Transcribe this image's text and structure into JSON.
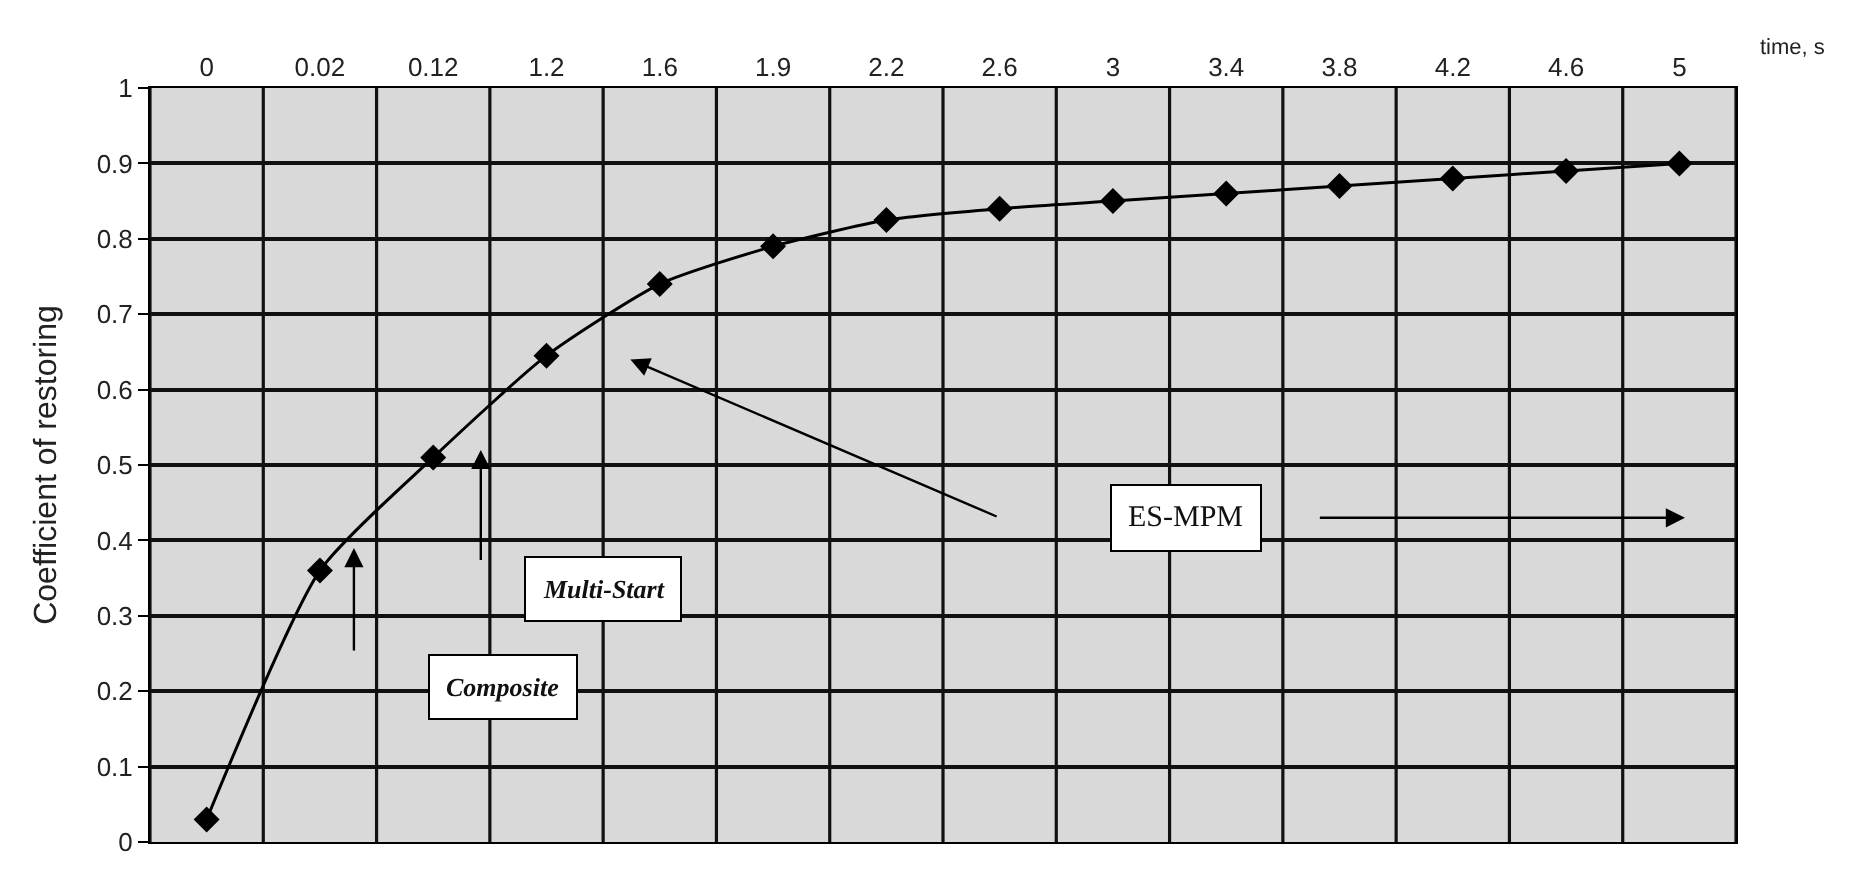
{
  "chart_data": {
    "type": "line",
    "xlabel": "time, s",
    "ylabel": "Coefficient of restoring",
    "categories": [
      "0",
      "0.02",
      "0.12",
      "1.2",
      "1.6",
      "1.9",
      "2.2",
      "2.6",
      "3",
      "3.4",
      "3.8",
      "4.2",
      "4.6",
      "5"
    ],
    "series": [
      {
        "color": "#000000",
        "values": [
          0.03,
          0.36,
          0.51,
          0.645,
          0.74,
          0.79,
          0.825,
          0.84,
          0.85,
          0.86,
          0.87,
          0.88,
          0.89,
          0.9
        ]
      }
    ],
    "ylim": [
      0,
      1
    ],
    "yticks": [
      0,
      0.1,
      0.2,
      0.3,
      0.4,
      0.5,
      0.6,
      0.7,
      0.8,
      0.9,
      1
    ],
    "grid": true,
    "marker": "diamond",
    "line_style": "solid",
    "annotations": [
      "ES-MPM",
      "Multi-Start",
      "Composite"
    ]
  }
}
